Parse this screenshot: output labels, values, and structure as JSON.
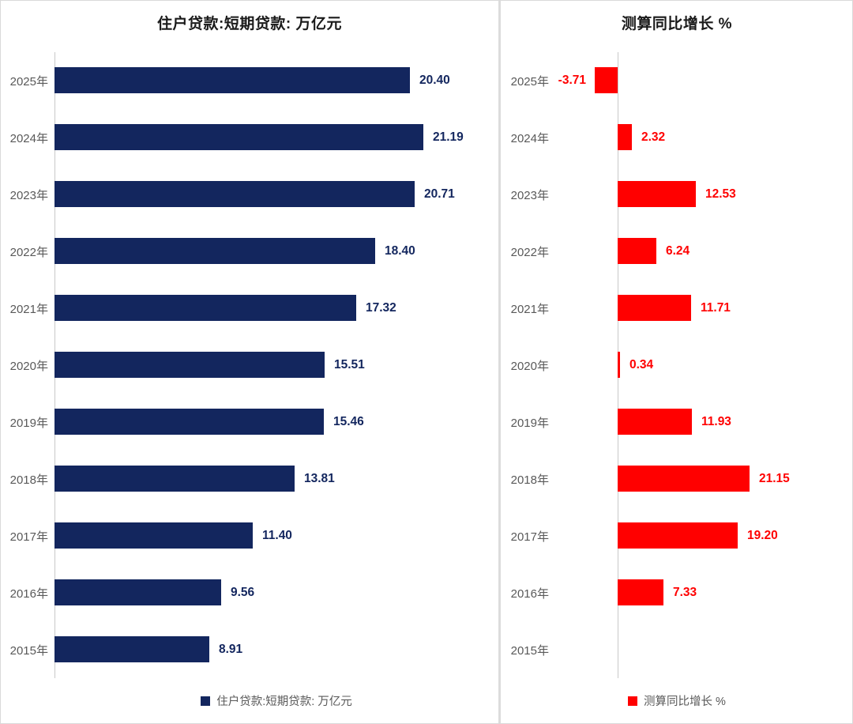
{
  "page": {
    "background": "#ffffff",
    "border_color": "#d9d9d9",
    "category_label_color": "#595959",
    "title_color": "#1a1a1a"
  },
  "chart_data": [
    {
      "type": "bar",
      "orientation": "horizontal",
      "title": "住户贷款:短期贷款: 万亿元",
      "legend": "住户贷款:短期贷款: 万亿元",
      "legend_position": "bottom",
      "grid": false,
      "categories": [
        "2025年",
        "2024年",
        "2023年",
        "2022年",
        "2021年",
        "2020年",
        "2019年",
        "2018年",
        "2017年",
        "2016年",
        "2015年"
      ],
      "values": [
        20.4,
        21.19,
        20.71,
        18.4,
        17.32,
        15.51,
        15.46,
        13.81,
        11.4,
        9.56,
        8.91
      ],
      "value_labels": [
        "20.40",
        "21.19",
        "20.71",
        "18.40",
        "17.32",
        "15.51",
        "15.46",
        "13.81",
        "11.40",
        "9.56",
        "8.91"
      ],
      "xlim": [
        0,
        25.5
      ],
      "bar_color": "#13265e",
      "value_label_color": "#13265e"
    },
    {
      "type": "bar",
      "orientation": "horizontal",
      "title": "测算同比增长 %",
      "legend": "测算同比增长 %",
      "legend_position": "bottom",
      "grid": false,
      "categories": [
        "2025年",
        "2024年",
        "2023年",
        "2022年",
        "2021年",
        "2020年",
        "2019年",
        "2018年",
        "2017年",
        "2016年",
        "2015年"
      ],
      "values": [
        -3.71,
        2.32,
        12.53,
        6.24,
        11.71,
        0.34,
        11.93,
        21.15,
        19.2,
        7.33,
        null
      ],
      "value_labels": [
        "-3.71",
        "2.32",
        "12.53",
        "6.24",
        "11.71",
        "0.34",
        "11.93",
        "21.15",
        "19.20",
        "7.33",
        ""
      ],
      "xlim": [
        -5,
        33
      ],
      "bar_color": "#ff0000",
      "value_label_color": "#ff0000"
    }
  ]
}
